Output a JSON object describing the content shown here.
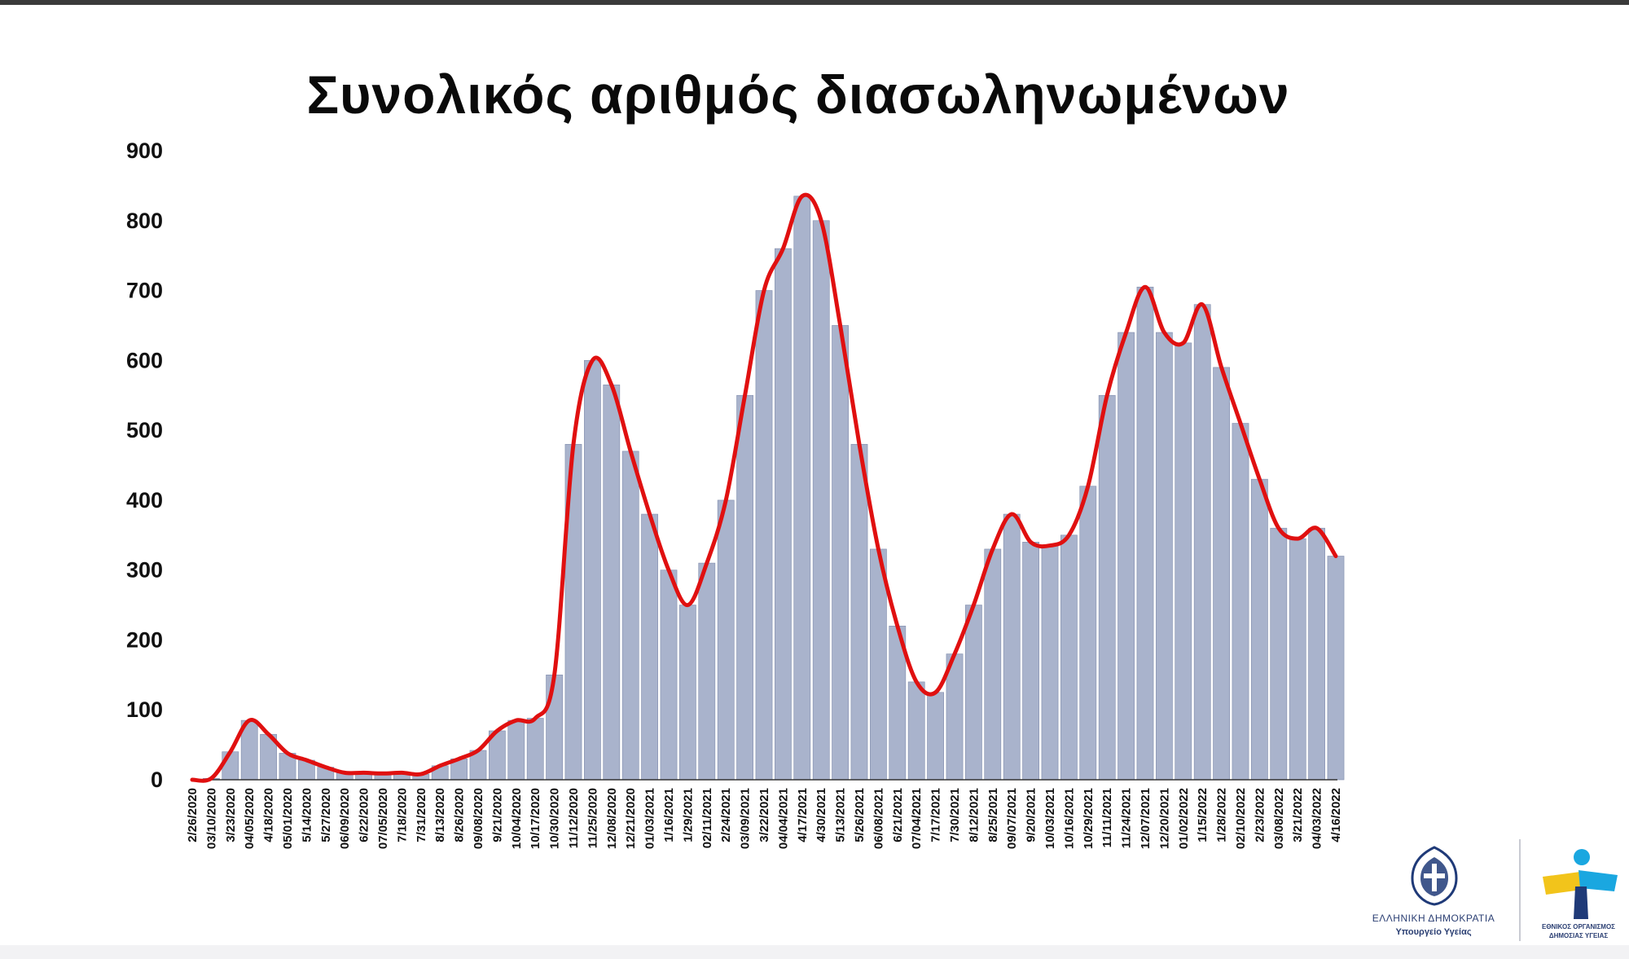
{
  "chart_data": {
    "type": "bar",
    "title": "Συνολικός αριθμός διασωληνωμένων",
    "xlabel": "",
    "ylabel": "",
    "ylim": [
      0,
      900
    ],
    "yticks": [
      "0",
      "100",
      "200",
      "300",
      "400",
      "500",
      "600",
      "700",
      "800",
      "900"
    ],
    "grid": false,
    "legend": "none",
    "categories": [
      "2/26/2020",
      "03/10/2020",
      "3/23/2020",
      "04/05/2020",
      "4/18/2020",
      "05/01/2020",
      "5/14/2020",
      "5/27/2020",
      "06/09/2020",
      "6/22/2020",
      "07/05/2020",
      "7/18/2020",
      "7/31/2020",
      "8/13/2020",
      "8/26/2020",
      "09/08/2020",
      "9/21/2020",
      "10/04/2020",
      "10/17/2020",
      "10/30/2020",
      "11/12/2020",
      "11/25/2020",
      "12/08/2020",
      "12/21/2020",
      "01/03/2021",
      "1/16/2021",
      "1/29/2021",
      "02/11/2021",
      "2/24/2021",
      "03/09/2021",
      "3/22/2021",
      "04/04/2021",
      "4/17/2021",
      "4/30/2021",
      "5/13/2021",
      "5/26/2021",
      "06/08/2021",
      "6/21/2021",
      "07/04/2021",
      "7/17/2021",
      "7/30/2021",
      "8/12/2021",
      "8/25/2021",
      "09/07/2021",
      "9/20/2021",
      "10/03/2021",
      "10/16/2021",
      "10/29/2021",
      "11/11/2021",
      "11/24/2021",
      "12/07/2021",
      "12/20/2021",
      "01/02/2022",
      "1/15/2022",
      "1/28/2022",
      "02/10/2022",
      "2/23/2022",
      "03/08/2022",
      "3/21/2022",
      "04/03/2022",
      "4/16/2022"
    ],
    "series": [
      {
        "values": [
          0,
          2,
          40,
          85,
          65,
          38,
          28,
          18,
          10,
          10,
          9,
          10,
          8,
          20,
          30,
          42,
          70,
          85,
          88,
          150,
          480,
          600,
          565,
          470,
          380,
          300,
          250,
          310,
          400,
          550,
          700,
          760,
          835,
          800,
          650,
          480,
          330,
          220,
          140,
          125,
          180,
          250,
          330,
          380,
          340,
          335,
          350,
          420,
          550,
          640,
          705,
          640,
          625,
          680,
          590,
          510,
          430,
          360,
          345,
          360,
          320
        ],
        "style": "bars"
      },
      {
        "values": [
          0,
          2,
          40,
          85,
          65,
          38,
          28,
          18,
          10,
          10,
          9,
          10,
          8,
          20,
          30,
          42,
          70,
          85,
          88,
          150,
          480,
          600,
          565,
          470,
          380,
          300,
          250,
          310,
          400,
          550,
          700,
          760,
          835,
          800,
          650,
          480,
          330,
          220,
          140,
          125,
          180,
          250,
          330,
          380,
          340,
          335,
          350,
          420,
          550,
          640,
          705,
          640,
          625,
          680,
          590,
          510,
          430,
          360,
          345,
          360,
          320
        ],
        "style": "smoothed-line"
      }
    ],
    "colors": {
      "bars": "#a9b3cc",
      "bar_edge": "#7f8bab",
      "line": "#e01010",
      "text": "#111111"
    }
  },
  "branding": {
    "left_line1": "ΕΛΛΗΝΙΚΗ ΔΗΜΟΚΡΑΤΙΑ",
    "left_line2": "Υπουργείο Υγείας",
    "right_line1": "ΕΘΝΙΚΟΣ ΟΡΓΑΝΙΣΜΟΣ",
    "right_line2": "ΔΗΜΟΣΙΑΣ ΥΓΕΙΑΣ",
    "left_icon": "greek-emblem-icon",
    "right_icon": "eody-logo-icon",
    "colors": {
      "navy": "#1f3a78",
      "yellow": "#f2c41b",
      "cyan": "#1aa7e0"
    }
  }
}
